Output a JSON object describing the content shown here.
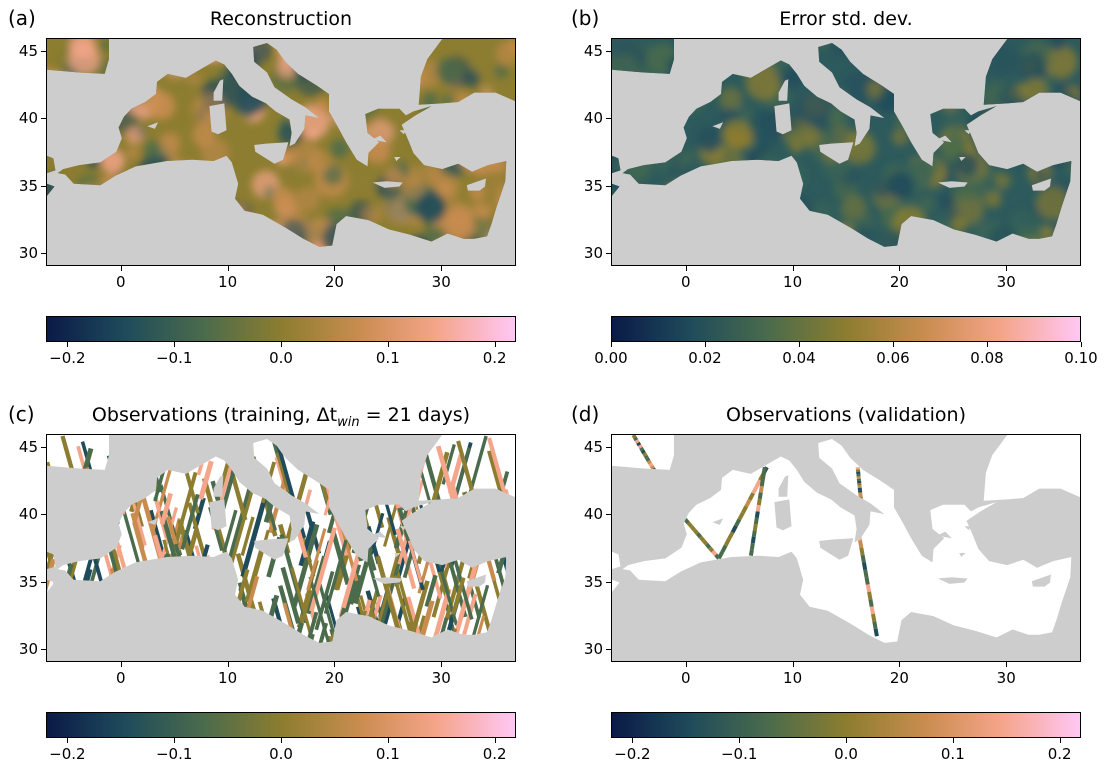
{
  "colors": {
    "land": "#cdcdcd",
    "sea_white": "#ffffff",
    "cmap": [
      "#0a1a47",
      "#1f4b5b",
      "#4a6b4c",
      "#8c7d30",
      "#c98c4f",
      "#f5a58a",
      "#ffc7f5"
    ],
    "err_fill": "#2d5a5c"
  },
  "panels": [
    {
      "letter": "(a)",
      "title": "Reconstruction",
      "title_sub": "",
      "title_end": "",
      "kind": "reconstruction",
      "yticks": [
        "45",
        "40",
        "35",
        "30"
      ],
      "xticks": [
        "0",
        "10",
        "20",
        "30"
      ],
      "colorbar_ticks": [
        "−0.2",
        "−0.1",
        "0.0",
        "0.1",
        "0.2"
      ],
      "colorbar_range": [
        -0.22,
        0.22
      ]
    },
    {
      "letter": "(b)",
      "title": "Error std. dev.",
      "title_sub": "",
      "title_end": "",
      "kind": "error",
      "yticks": [
        "45",
        "40",
        "35",
        "30"
      ],
      "xticks": [
        "0",
        "10",
        "20",
        "30"
      ],
      "colorbar_ticks": [
        "0.00",
        "0.02",
        "0.04",
        "0.06",
        "0.08",
        "0.10"
      ],
      "colorbar_range": [
        0.0,
        0.1
      ]
    },
    {
      "letter": "(c)",
      "title": "Observations (training, Δt",
      "title_sub": "win",
      "title_end": " = 21 days)",
      "kind": "training",
      "yticks": [
        "45",
        "40",
        "35",
        "30"
      ],
      "xticks": [
        "0",
        "10",
        "20",
        "30"
      ],
      "colorbar_ticks": [
        "−0.2",
        "−0.1",
        "0.0",
        "0.1",
        "0.2"
      ],
      "colorbar_range": [
        -0.22,
        0.22
      ]
    },
    {
      "letter": "(d)",
      "title": "Observations (validation)",
      "title_sub": "",
      "title_end": "",
      "kind": "validation",
      "yticks": [
        "45",
        "40",
        "35",
        "30"
      ],
      "xticks": [
        "0",
        "10",
        "20",
        "30"
      ],
      "colorbar_ticks": [
        "−0.2",
        "−0.1",
        "0.0",
        "0.1",
        "0.2"
      ],
      "colorbar_range": [
        -0.22,
        0.22
      ]
    }
  ],
  "axes": {
    "lon_range": [
      -7,
      37
    ],
    "lat_range": [
      29,
      46
    ]
  }
}
